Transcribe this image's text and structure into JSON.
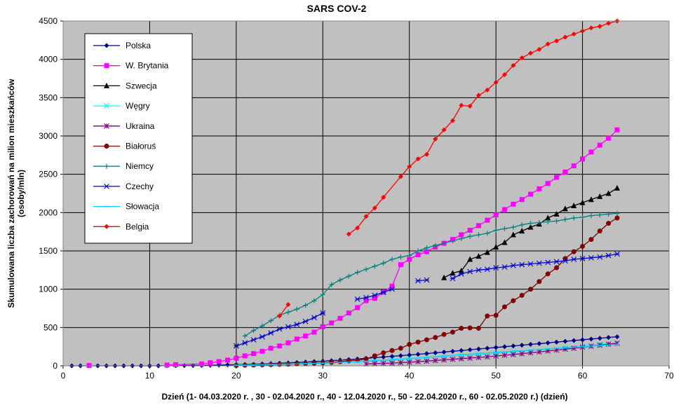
{
  "chart_data": {
    "type": "line",
    "title": "SARS COV-2",
    "xlabel": "Dzień (1- 04.03.2020 r. , 30 - 02.04.2020 r., 40 - 12.04.2020 r., 50 - 22.04.2020 r., 60 - 02.05.2020 r.) (dzień)",
    "ylabel_line1": "Skumulowana liczba zachorowań na milion mieszkańców",
    "ylabel_line2": "(osoby/mln)",
    "xlim": [
      0,
      70
    ],
    "ylim": [
      0,
      4500
    ],
    "xticks": [
      0,
      10,
      20,
      30,
      40,
      50,
      60,
      70
    ],
    "yticks": [
      0,
      500,
      1000,
      1500,
      2000,
      2500,
      3000,
      3500,
      4000,
      4500
    ],
    "grid": true,
    "legend_position": "top-left",
    "series": [
      {
        "name": "Polska",
        "color": "#000080",
        "marker": "diamond",
        "x": [
          1,
          2,
          3,
          4,
          5,
          6,
          7,
          8,
          9,
          10,
          11,
          12,
          13,
          14,
          15,
          16,
          17,
          18,
          19,
          20,
          21,
          22,
          23,
          24,
          25,
          26,
          27,
          28,
          29,
          30,
          31,
          32,
          33,
          34,
          35,
          36,
          37,
          38,
          39,
          40,
          41,
          42,
          43,
          44,
          45,
          46,
          47,
          48,
          49,
          50,
          51,
          52,
          53,
          54,
          55,
          56,
          57,
          58,
          59,
          60,
          61,
          62,
          63,
          64
        ],
        "y": [
          0,
          0,
          0,
          0,
          0,
          0,
          0,
          0,
          0,
          0,
          0,
          1,
          2,
          3,
          4,
          5,
          7,
          9,
          12,
          15,
          18,
          21,
          25,
          29,
          34,
          39,
          44,
          50,
          56,
          62,
          68,
          75,
          82,
          90,
          98,
          106,
          115,
          124,
          133,
          142,
          151,
          160,
          170,
          180,
          190,
          200,
          210,
          220,
          230,
          240,
          250,
          260,
          270,
          280,
          290,
          300,
          310,
          320,
          330,
          340,
          350,
          360,
          370,
          380
        ]
      },
      {
        "name": "W. Brytania",
        "color": "#ff00ff",
        "marker": "square",
        "x": [
          3,
          12,
          13,
          16,
          17,
          18,
          19,
          20,
          21,
          22,
          23,
          24,
          25,
          26,
          27,
          28,
          29,
          30,
          31,
          32,
          33,
          34,
          35,
          36,
          37,
          38,
          39,
          40,
          41,
          42,
          43,
          44,
          45,
          46,
          47,
          48,
          49,
          50,
          51,
          52,
          53,
          54,
          55,
          56,
          57,
          58,
          59,
          60,
          61,
          62,
          63,
          64
        ],
        "y": [
          5,
          10,
          15,
          25,
          40,
          55,
          75,
          100,
          130,
          160,
          190,
          230,
          260,
          300,
          350,
          390,
          440,
          510,
          560,
          620,
          690,
          760,
          850,
          880,
          960,
          1040,
          1320,
          1390,
          1450,
          1490,
          1550,
          1600,
          1650,
          1710,
          1770,
          1830,
          1900,
          1970,
          2040,
          2110,
          2170,
          2240,
          2310,
          2380,
          2460,
          2530,
          2610,
          2700,
          2790,
          2880,
          2970,
          3080
        ]
      },
      {
        "name": "Szwecja",
        "color": "#000000",
        "marker": "triangle",
        "x": [
          44,
          45,
          46,
          47,
          48,
          49,
          50,
          51,
          52,
          53,
          54,
          55,
          56,
          57,
          58,
          59,
          60,
          61,
          62,
          63,
          64
        ],
        "y": [
          1150,
          1210,
          1240,
          1390,
          1430,
          1480,
          1550,
          1610,
          1710,
          1760,
          1810,
          1850,
          1930,
          1980,
          2050,
          2090,
          2130,
          2170,
          2210,
          2250,
          2320
        ]
      },
      {
        "name": "Węgry",
        "color": "#00ffff",
        "marker": "x",
        "x": [
          20,
          22,
          24,
          26,
          28,
          30,
          32,
          34,
          36,
          38,
          40,
          42,
          44,
          46,
          48,
          50,
          52,
          54,
          56,
          58,
          60,
          62,
          64
        ],
        "y": [
          10,
          15,
          20,
          25,
          30,
          40,
          50,
          60,
          70,
          80,
          95,
          110,
          125,
          140,
          155,
          170,
          185,
          200,
          220,
          240,
          260,
          280,
          300
        ]
      },
      {
        "name": "Ukraina",
        "color": "#800080",
        "marker": "star",
        "x": [
          35,
          36,
          37,
          38,
          39,
          40,
          41,
          42,
          43,
          44,
          45,
          46,
          47,
          48,
          49,
          50,
          51,
          52,
          53,
          54,
          55,
          56,
          57,
          58,
          59,
          60,
          61,
          62,
          63,
          64
        ],
        "y": [
          25,
          28,
          32,
          36,
          42,
          48,
          55,
          62,
          70,
          78,
          86,
          94,
          102,
          110,
          118,
          128,
          138,
          148,
          158,
          170,
          182,
          194,
          206,
          218,
          230,
          244,
          256,
          270,
          282,
          295
        ]
      },
      {
        "name": "Białoruś",
        "color": "#800000",
        "marker": "circle",
        "x": [
          20,
          21,
          22,
          23,
          24,
          25,
          26,
          27,
          28,
          29,
          30,
          31,
          32,
          33,
          34,
          35,
          36,
          37,
          38,
          39,
          40,
          41,
          42,
          43,
          44,
          45,
          46,
          47,
          48,
          49,
          50,
          51,
          52,
          53,
          54,
          55,
          56,
          57,
          58,
          59,
          60,
          61,
          62,
          63,
          64
        ],
        "y": [
          5,
          8,
          10,
          12,
          15,
          18,
          20,
          25,
          30,
          35,
          40,
          45,
          55,
          65,
          75,
          90,
          130,
          170,
          200,
          230,
          280,
          310,
          340,
          370,
          410,
          440,
          490,
          495,
          490,
          650,
          660,
          770,
          850,
          920,
          1000,
          1100,
          1200,
          1280,
          1400,
          1490,
          1560,
          1650,
          1760,
          1860,
          1930
        ]
      },
      {
        "name": "Niemcy",
        "color": "#008080",
        "marker": "plus",
        "x": [
          21,
          22,
          23,
          24,
          25,
          26,
          27,
          28,
          29,
          30,
          31,
          32,
          33,
          34,
          35,
          36,
          37,
          38,
          39,
          40,
          41,
          42,
          43,
          44,
          45,
          46,
          47,
          48,
          49,
          50,
          51,
          52,
          53,
          54,
          55,
          56,
          57,
          58,
          59,
          60,
          61,
          62,
          63,
          64
        ],
        "y": [
          390,
          460,
          520,
          590,
          660,
          700,
          740,
          790,
          850,
          930,
          1060,
          1120,
          1170,
          1220,
          1260,
          1300,
          1340,
          1390,
          1420,
          1440,
          1500,
          1540,
          1570,
          1600,
          1630,
          1660,
          1690,
          1710,
          1730,
          1770,
          1790,
          1810,
          1840,
          1860,
          1870,
          1880,
          1890,
          1910,
          1930,
          1940,
          1960,
          1970,
          1980,
          1990
        ]
      },
      {
        "name": "Czechy",
        "color": "#0000cc",
        "marker": "asterisk",
        "x": [
          20,
          21,
          22,
          23,
          24,
          25,
          26,
          27,
          28,
          29,
          30,
          34,
          35,
          36,
          37,
          38,
          41,
          42,
          45,
          46,
          47,
          48,
          49,
          50,
          51,
          52,
          53,
          54,
          55,
          56,
          57,
          58,
          59,
          60,
          61,
          62,
          63,
          64
        ],
        "y": [
          260,
          300,
          340,
          380,
          430,
          480,
          510,
          540,
          580,
          630,
          690,
          870,
          890,
          920,
          960,
          1000,
          1110,
          1120,
          1140,
          1200,
          1230,
          1250,
          1260,
          1280,
          1290,
          1310,
          1320,
          1330,
          1340,
          1350,
          1360,
          1370,
          1390,
          1400,
          1410,
          1420,
          1440,
          1460
        ]
      },
      {
        "name": "Słowacja",
        "color": "#00ccff",
        "marker": "dash",
        "x": [
          20,
          22,
          24,
          26,
          28,
          30,
          32,
          34,
          36,
          38,
          40,
          42,
          44,
          46,
          48,
          50,
          52,
          54,
          56,
          58,
          60,
          62,
          64
        ],
        "y": [
          8,
          12,
          18,
          22,
          28,
          35,
          45,
          55,
          68,
          80,
          95,
          110,
          128,
          145,
          160,
          175,
          190,
          205,
          220,
          235,
          250,
          265,
          280
        ]
      },
      {
        "name": "Belgia",
        "color": "#ff0000",
        "marker": "diamond",
        "x": [
          25,
          26,
          33,
          34,
          35,
          36,
          37,
          39,
          40,
          41,
          42,
          43,
          44,
          45,
          46,
          47,
          48,
          49,
          50,
          51,
          52,
          53,
          54,
          55,
          56,
          57,
          58,
          59,
          60,
          61,
          62,
          63,
          64
        ],
        "y": [
          650,
          800,
          1720,
          1800,
          1950,
          2060,
          2200,
          2470,
          2600,
          2700,
          2760,
          2960,
          3080,
          3200,
          3400,
          3390,
          3530,
          3600,
          3700,
          3800,
          3920,
          4020,
          4080,
          4130,
          4200,
          4240,
          4290,
          4330,
          4370,
          4410,
          4430,
          4470,
          4500
        ]
      }
    ],
    "segment_breaks": {
      "Belgia": [
        26
      ],
      "Czechy": [
        30,
        38,
        42
      ],
      "W. Brytania": [
        3
      ]
    }
  }
}
